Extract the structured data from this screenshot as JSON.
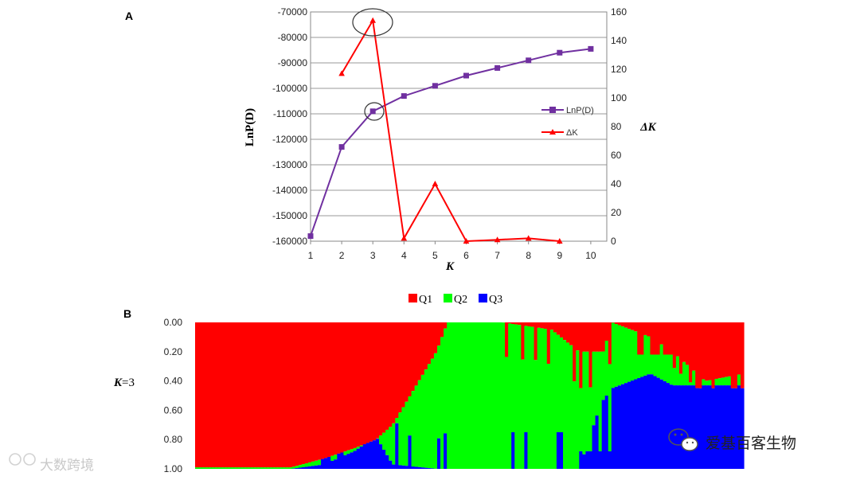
{
  "panels": {
    "a": "A",
    "b": "B"
  },
  "chart_data": [
    {
      "type": "line",
      "x": [
        1,
        2,
        3,
        4,
        5,
        6,
        7,
        8,
        9,
        10
      ],
      "xlabel": "K",
      "ylabel": "LnP(D)",
      "y2label": "ΔK",
      "ylim": [
        -160000,
        -70000
      ],
      "y_ticks": [
        -70000,
        -80000,
        -90000,
        -100000,
        -110000,
        -120000,
        -130000,
        -140000,
        -150000,
        -160000
      ],
      "y_tick_labels": [
        "-70000",
        "-80000",
        "-90000",
        "-100000",
        "-110000",
        "-120000",
        "-130000",
        "-140000",
        "-150000",
        "-160000"
      ],
      "y2lim": [
        0,
        160
      ],
      "y2_ticks": [
        160,
        140,
        120,
        100,
        80,
        60,
        40,
        20,
        0
      ],
      "y2_tick_labels": [
        "160",
        "140",
        "120",
        "100",
        "80",
        "60",
        "40",
        "20",
        "0"
      ],
      "x_tick_labels": [
        "1",
        "2",
        "3",
        "4",
        "5",
        "6",
        "7",
        "8",
        "9",
        "10"
      ],
      "grid": true,
      "legend_position": "right",
      "series": [
        {
          "name": "LnP(D)",
          "axis": "left",
          "color": "#7030a0",
          "marker": "square",
          "x": [
            1,
            2,
            3,
            4,
            5,
            6,
            7,
            8,
            9,
            10
          ],
          "values": [
            -158000,
            -123000,
            -109000,
            -103000,
            -99000,
            -95000,
            -92000,
            -89000,
            -86000,
            -84500
          ]
        },
        {
          "name": "ΔK",
          "axis": "right",
          "color": "#ff0000",
          "marker": "triangle",
          "x": [
            2,
            3,
            4,
            5,
            6,
            7,
            8,
            9
          ],
          "values": [
            117,
            154,
            2,
            40,
            0,
            1,
            2,
            0
          ]
        }
      ],
      "highlighted_points": [
        {
          "series": "ΔK",
          "x": 3
        },
        {
          "series": "LnP(D)",
          "x": 3
        }
      ]
    },
    {
      "type": "bar",
      "stacked": true,
      "row_label": "K=3",
      "row_label_k": "K",
      "row_label_eq": "=3",
      "ylim": [
        0,
        1
      ],
      "y_tick_labels": [
        "0.00",
        "0.20",
        "0.40",
        "0.60",
        "0.80",
        "1.00"
      ],
      "legend_position": "top",
      "series": [
        {
          "name": "Q1",
          "color": "#ff0000"
        },
        {
          "name": "Q2",
          "color": "#00ff00"
        },
        {
          "name": "Q3",
          "color": "#0000ff"
        }
      ],
      "segments": [
        {
          "from": 0.0,
          "to": 0.175,
          "Q1": [
            0.99,
            0.99
          ],
          "Q3": [
            0.0,
            0.0
          ]
        },
        {
          "from": 0.175,
          "to": 0.235,
          "Q1": [
            0.99,
            0.93
          ],
          "Q3": [
            0.0,
            0.03
          ]
        },
        {
          "from": 0.235,
          "to": 0.29,
          "Q1": [
            0.93,
            0.86
          ],
          "Q3": [
            0.03,
            0.12
          ]
        },
        {
          "from": 0.29,
          "to": 0.33,
          "Q1": [
            0.86,
            0.8
          ],
          "Q3": [
            0.12,
            0.22
          ]
        },
        {
          "from": 0.33,
          "to": 0.36,
          "Q1": [
            0.8,
            0.7
          ],
          "Q3": [
            0.22,
            0.03
          ]
        },
        {
          "from": 0.36,
          "to": 0.44,
          "Q1": [
            0.7,
            0.2
          ],
          "Q3": [
            0.03,
            0.0
          ]
        },
        {
          "from": 0.44,
          "to": 0.46,
          "Q1": [
            0.2,
            0.0
          ],
          "Q3": [
            0.0,
            0.0
          ]
        },
        {
          "from": 0.46,
          "to": 0.56,
          "Q1": [
            0.0,
            0.0
          ],
          "Q3": [
            0.0,
            0.0
          ]
        },
        {
          "from": 0.56,
          "to": 0.65,
          "Q1": [
            0.0,
            0.05
          ],
          "Q3": [
            0.0,
            0.0
          ]
        },
        {
          "from": 0.65,
          "to": 0.7,
          "Q1": [
            0.05,
            0.2
          ],
          "Q3": [
            0.0,
            0.0
          ]
        },
        {
          "from": 0.7,
          "to": 0.74,
          "Q1": [
            0.2,
            0.2
          ],
          "Q3": [
            0.0,
            0.45
          ]
        },
        {
          "from": 0.74,
          "to": 0.76,
          "Q1": [
            0.25,
            0.0
          ],
          "Q3": [
            0.45,
            0.55
          ]
        },
        {
          "from": 0.76,
          "to": 0.83,
          "Q1": [
            0.0,
            0.1
          ],
          "Q3": [
            0.55,
            0.65
          ]
        },
        {
          "from": 0.83,
          "to": 0.87,
          "Q1": [
            0.1,
            0.2
          ],
          "Q3": [
            0.65,
            0.57
          ]
        },
        {
          "from": 0.87,
          "to": 0.93,
          "Q1": [
            0.2,
            0.4
          ],
          "Q3": [
            0.57,
            0.57
          ]
        },
        {
          "from": 0.93,
          "to": 1.0,
          "Q1": [
            0.4,
            0.35
          ],
          "Q3": [
            0.57,
            0.57
          ]
        }
      ]
    }
  ],
  "watermarks": {
    "left": "大数跨境",
    "right": "爱基百客生物"
  }
}
